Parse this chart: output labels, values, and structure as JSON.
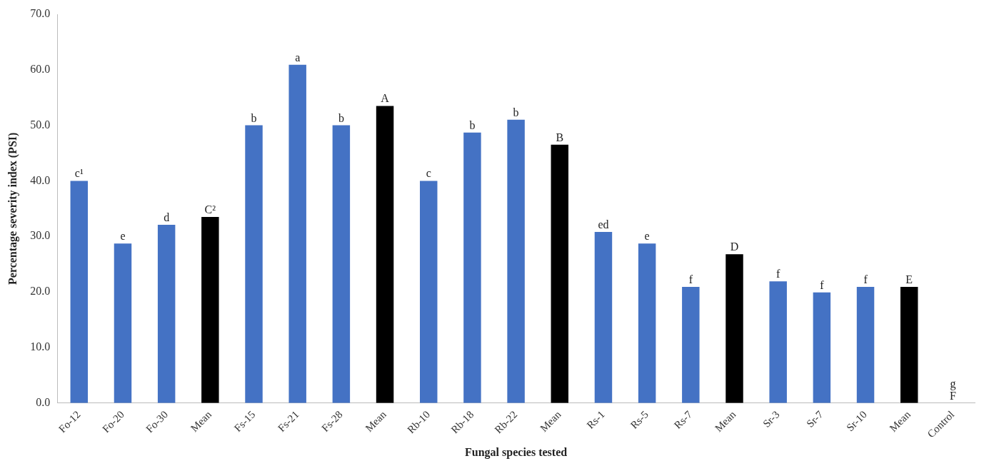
{
  "chart_data": {
    "type": "bar",
    "xlabel": "Fungal species tested",
    "ylabel": "Percentage severity index (PSI)",
    "categories": [
      "Fo-12",
      "Fo-20",
      "Fo-30",
      "Mean",
      "Fs-15",
      "Fs-21",
      "Fs-28",
      "Mean",
      "Rb-10",
      "Rb-18",
      "Rb-22",
      "Mean",
      "Rs-1",
      "Rs-5",
      "Rs-7",
      "Mean",
      "Sr-3",
      "Sr-7",
      "Sr-10",
      "Mean",
      "Control"
    ],
    "values": [
      40,
      28.7,
      32.1,
      33.5,
      50,
      60.9,
      50,
      53.5,
      40,
      48.7,
      51,
      46.5,
      30.8,
      28.7,
      20.9,
      26.8,
      21.9,
      19.9,
      20.9,
      20.9,
      0
    ],
    "colors": [
      "#4472c4",
      "#4472c4",
      "#4472c4",
      "#000000",
      "#4472c4",
      "#4472c4",
      "#4472c4",
      "#000000",
      "#4472c4",
      "#4472c4",
      "#4472c4",
      "#000000",
      "#4472c4",
      "#4472c4",
      "#4472c4",
      "#000000",
      "#4472c4",
      "#4472c4",
      "#4472c4",
      "#000000",
      "#4472c4"
    ],
    "value_labels": [
      "c¹",
      "e",
      "d",
      "C²",
      "b",
      "a",
      "b",
      "A",
      "c",
      "b",
      "b",
      "B",
      "ed",
      "e",
      "f",
      "D",
      "f",
      "f",
      "f",
      "E",
      "g\nF"
    ],
    "ylim": [
      0,
      70
    ],
    "yticks": [
      {
        "value": 0,
        "label": "0.0"
      },
      {
        "value": 10,
        "label": "10.0"
      },
      {
        "value": 20,
        "label": "20.0"
      },
      {
        "value": 30,
        "label": "30.0"
      },
      {
        "value": 40,
        "label": "40.0"
      },
      {
        "value": 50,
        "label": "50.0"
      },
      {
        "value": 60,
        "label": "60.0"
      },
      {
        "value": 70,
        "label": "70.0"
      }
    ],
    "grid": false,
    "legend": false
  }
}
